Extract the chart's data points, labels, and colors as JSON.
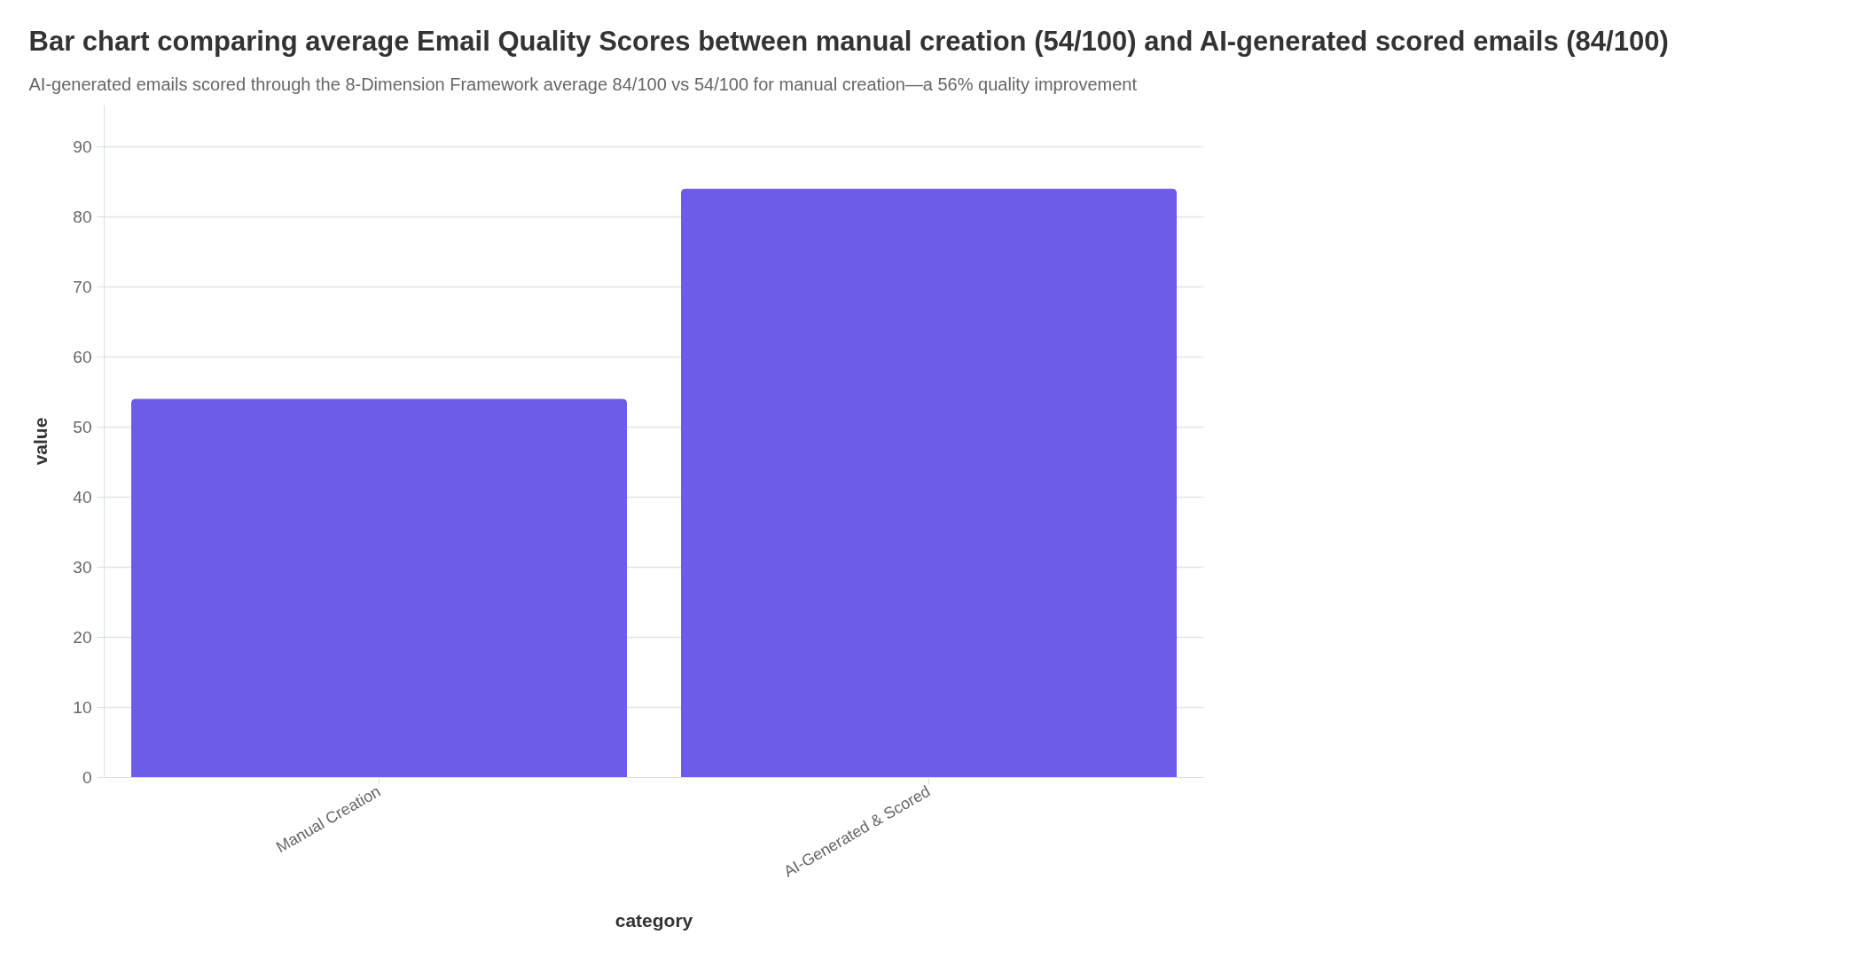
{
  "chart_data": {
    "type": "bar",
    "title": "Bar chart comparing average Email Quality Scores between manual creation (54/100) and AI-generated scored emails (84/100)",
    "subtitle": "AI-generated emails scored through the 8-Dimension Framework average 84/100 vs 54/100 for manual creation—a 56% quality improvement",
    "xlabel": "category",
    "ylabel": "value",
    "categories": [
      "Manual Creation",
      "AI-Generated & Scored"
    ],
    "values": [
      54,
      84
    ],
    "color": "#6c5ce7",
    "ylim": [
      0,
      96
    ],
    "yticks": [
      0,
      10,
      20,
      30,
      40,
      50,
      60,
      70,
      80,
      90
    ],
    "grid": "y"
  }
}
